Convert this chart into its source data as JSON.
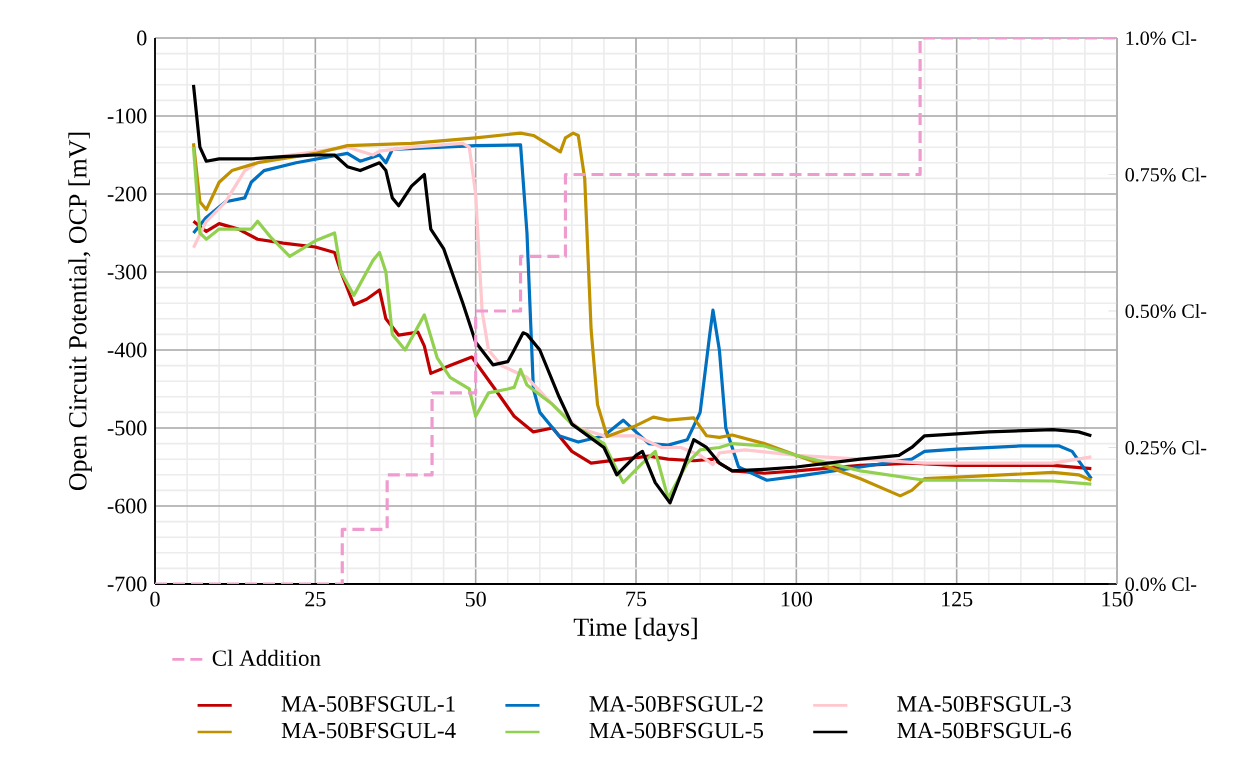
{
  "chart_data": {
    "type": "line",
    "xlabel": "Time [days]",
    "ylabel": "Open Circuit Potential, OCP [mV]",
    "xlim": [
      0,
      150
    ],
    "ylim": [
      -700,
      0
    ],
    "xticks": [
      0,
      25,
      50,
      75,
      100,
      125,
      150
    ],
    "yticks": [
      -700,
      -600,
      -500,
      -400,
      -300,
      -200,
      -100,
      0
    ],
    "y2lim": [
      0,
      1
    ],
    "y2ticks": [
      {
        "value": 0,
        "label": "0.0% Cl-"
      },
      {
        "value": 0.25,
        "label": "0.25% Cl-"
      },
      {
        "value": 0.5,
        "label": "0.50% Cl-"
      },
      {
        "value": 0.75,
        "label": "0.75% Cl-"
      },
      {
        "value": 1,
        "label": "1.0% Cl-"
      }
    ],
    "grid": true,
    "legend": "bottom",
    "series": [
      {
        "name": "MA-50BFSGUL-1",
        "color": "#c00000",
        "x": [
          6,
          8,
          10,
          13,
          16,
          20,
          25,
          28,
          29,
          31,
          33,
          35,
          36,
          38,
          41,
          42,
          43,
          46,
          49.4,
          53,
          56,
          59,
          62,
          65,
          68,
          73,
          77,
          80,
          84,
          87,
          90,
          95,
          100,
          110,
          118,
          125,
          140,
          146
        ],
        "values": [
          -235,
          -248,
          -238,
          -245,
          -258,
          -263,
          -268,
          -275,
          -300,
          -342,
          -335,
          -323,
          -360,
          -381,
          -377,
          -395,
          -430,
          -420,
          -409,
          -450,
          -485,
          -505,
          -500,
          -530,
          -545,
          -540,
          -536,
          -540,
          -542,
          -540,
          -555,
          -558,
          -555,
          -548,
          -545,
          -548,
          -548,
          -552
        ]
      },
      {
        "name": "MA-50BFSGUL-2",
        "color": "#0070c0",
        "x": [
          6,
          8,
          11,
          14,
          15,
          17,
          22,
          30,
          32,
          35,
          36,
          37,
          50,
          57,
          58,
          59,
          60,
          63,
          66,
          70,
          73,
          75,
          77,
          80,
          83,
          85,
          86.5,
          87,
          88,
          89,
          91,
          95.4,
          100,
          110,
          118,
          120,
          125,
          135,
          141,
          143,
          146
        ],
        "values": [
          -250,
          -230,
          -210,
          -205,
          -185,
          -170,
          -160,
          -148,
          -158,
          -150,
          -160,
          -143,
          -138,
          -137,
          -250,
          -450,
          -480,
          -510,
          -518,
          -510,
          -490,
          -505,
          -520,
          -522,
          -515,
          -480,
          -380,
          -349,
          -400,
          -500,
          -550,
          -567,
          -562,
          -550,
          -540,
          -530,
          -527,
          -523,
          -523,
          -530,
          -565
        ]
      },
      {
        "name": "MA-50BFSGUL-3",
        "color": "#ffc7ce",
        "x": [
          6,
          8,
          11,
          14,
          17,
          30,
          34,
          35,
          40,
          48,
          49,
          50,
          51,
          52,
          54,
          58,
          62,
          66,
          70,
          75,
          79,
          82,
          85,
          87,
          88,
          92,
          100,
          110,
          120,
          140,
          146
        ],
        "values": [
          -269,
          -235,
          -210,
          -170,
          -155,
          -140,
          -150,
          -145,
          -140,
          -135,
          -140,
          -200,
          -350,
          -400,
          -420,
          -435,
          -470,
          -500,
          -510,
          -510,
          -525,
          -525,
          -535,
          -547,
          -532,
          -528,
          -535,
          -540,
          -545,
          -545,
          -537
        ]
      },
      {
        "name": "MA-50BFSGUL-4",
        "color": "#bf9000",
        "x": [
          6,
          7,
          8,
          10,
          12,
          16,
          25,
          30,
          40,
          50,
          57,
          59,
          62,
          63.2,
          64,
          65.2,
          66,
          67,
          68,
          69,
          70.5,
          75,
          77.7,
          80,
          84,
          86,
          88,
          90,
          95,
          100,
          110,
          116.2,
          118,
          120,
          125,
          140,
          144,
          146
        ],
        "values": [
          -135,
          -210,
          -220,
          -185,
          -170,
          -160,
          -148,
          -138,
          -135,
          -128,
          -122,
          -125,
          -140,
          -146,
          -128,
          -122,
          -125,
          -180,
          -374,
          -470,
          -511,
          -497,
          -486,
          -490,
          -487,
          -510,
          -512,
          -509,
          -520,
          -535,
          -565,
          -587,
          -580,
          -565,
          -563,
          -557,
          -560,
          -567
        ]
      },
      {
        "name": "MA-50BFSGUL-5",
        "color": "#92d050",
        "x": [
          6,
          7,
          8,
          10,
          12,
          15,
          16,
          18,
          21,
          25,
          28,
          29,
          31,
          34,
          35,
          36,
          37,
          39,
          41,
          42,
          44,
          46,
          49,
          50,
          52,
          55,
          56,
          57,
          58,
          62,
          65,
          67,
          70,
          73,
          76,
          78,
          80,
          83,
          85,
          88,
          90,
          95,
          100,
          110,
          120,
          130,
          140,
          146
        ],
        "values": [
          -140,
          -250,
          -258,
          -245,
          -245,
          -245,
          -235,
          -255,
          -280,
          -260,
          -250,
          -300,
          -330,
          -285,
          -275,
          -300,
          -380,
          -400,
          -370,
          -355,
          -410,
          -435,
          -450,
          -485,
          -455,
          -450,
          -448,
          -425,
          -445,
          -470,
          -495,
          -505,
          -520,
          -570,
          -545,
          -530,
          -590,
          -545,
          -528,
          -525,
          -520,
          -523,
          -535,
          -555,
          -567,
          -567,
          -568,
          -572
        ]
      },
      {
        "name": "MA-50BFSGUL-6",
        "color": "#000000",
        "x": [
          6,
          7,
          8,
          10,
          15,
          20,
          25,
          28,
          30,
          32,
          35,
          36,
          37,
          38,
          40,
          42,
          43,
          45,
          48,
          50,
          52.7,
          55,
          56,
          57.4,
          58,
          60,
          63,
          65,
          70,
          72,
          75,
          76,
          78,
          80.3,
          82,
          84,
          86,
          88,
          90,
          95,
          100,
          110,
          116,
          118,
          120,
          130,
          140,
          144,
          146
        ],
        "values": [
          -60,
          -140,
          -158,
          -155,
          -155,
          -152,
          -150,
          -150,
          -165,
          -170,
          -160,
          -170,
          -205,
          -215,
          -190,
          -175,
          -245,
          -270,
          -340,
          -390,
          -419,
          -415,
          -400,
          -378,
          -380,
          -400,
          -460,
          -495,
          -525,
          -560,
          -535,
          -530,
          -570,
          -596,
          -560,
          -515,
          -525,
          -545,
          -555,
          -553,
          -550,
          -540,
          -535,
          -525,
          -510,
          -505,
          -502,
          -505,
          -510
        ]
      },
      {
        "name": "Cl Addition",
        "type": "step",
        "axis": "y2",
        "line_style": "dashed",
        "color": "#f09bd0",
        "x": [
          0,
          29.2,
          36.2,
          43.2,
          50,
          57,
          64,
          119.3,
          150
        ],
        "values": [
          0,
          0.1,
          0.2,
          0.35,
          0.5,
          0.6,
          0.75,
          1,
          1
        ]
      }
    ]
  }
}
